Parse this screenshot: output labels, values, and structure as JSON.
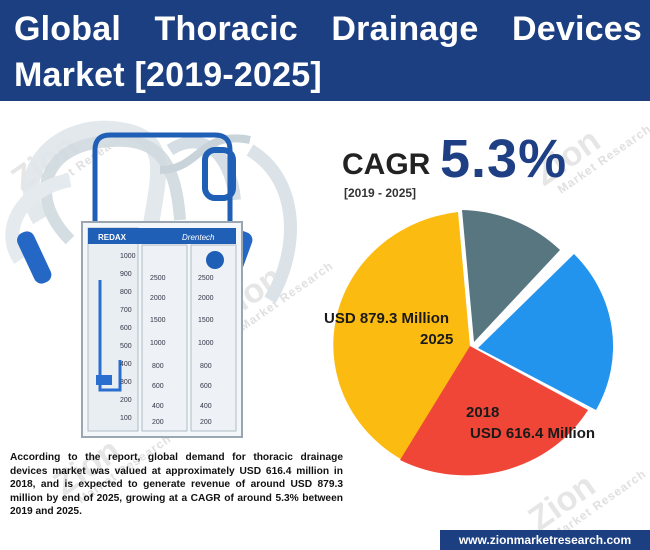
{
  "header": {
    "title": "Global Thoracic Drainage Devices Market [2019-2025]",
    "bg_color": "#1c3f82"
  },
  "watermark": {
    "brand": "Zion",
    "tagline": "Market Research"
  },
  "cagr": {
    "label": "CAGR",
    "value": "5.3%",
    "years": "[2019 - 2025]",
    "value_color": "#1f3f85"
  },
  "device_image": {
    "brand_label": "REDAX",
    "model_label": "Drentech",
    "scale_left": [
      "1000",
      "900",
      "800",
      "700",
      "600",
      "500",
      "400",
      "300",
      "200",
      "100"
    ],
    "scale_mid": [
      "2500",
      "2000",
      "1500",
      "1000",
      "800",
      "600",
      "400",
      "200"
    ],
    "scale_right": [
      "2500",
      "2000",
      "1500",
      "1000",
      "800",
      "600",
      "400",
      "200"
    ]
  },
  "chart_data": {
    "type": "pie",
    "slices": [
      {
        "label": "USD 879.3 Million 2025",
        "value": 879.3,
        "color": "#fbbb10"
      },
      {
        "label": "USD 616.4 Million 2018",
        "value": 616.4,
        "color": "#ef4638"
      },
      {
        "label": "",
        "value": 0,
        "color": "#2394ed"
      },
      {
        "label": "",
        "value": 0,
        "color": "#587680"
      }
    ],
    "annotations": {
      "value_2025": "USD 879.3 Million",
      "year_2025": "2025",
      "year_2018": "2018",
      "value_2018": "USD 616.4 Million"
    }
  },
  "description": "According to the report, global demand for thoracic drainage devices market was valued at approximately USD 616.4 million in 2018, and is expected to generate revenue of around USD 879.3 million by end of 2025, growing at a CAGR of around 5.3% between 2019 and 2025.",
  "footer": {
    "url": "www.zionmarketresearch.com"
  }
}
